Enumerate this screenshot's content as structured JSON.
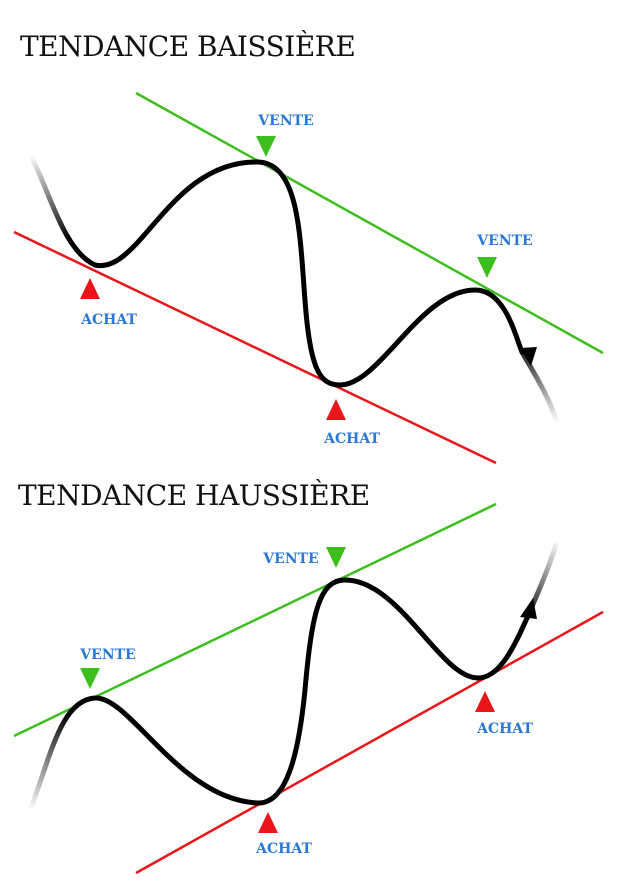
{
  "colors": {
    "resistance": "#3cbf1c",
    "support": "#e8161b",
    "sell_marker": "#3cbf1c",
    "buy_marker": "#e8161b",
    "label_text": "#2a79d6",
    "curve": "#000000"
  },
  "panels": [
    {
      "title": "TENDANCE BAISSIÈRE",
      "signals": [
        {
          "type": "buy",
          "label": "ACHAT"
        },
        {
          "type": "sell",
          "label": "VENTE"
        },
        {
          "type": "buy",
          "label": "ACHAT"
        },
        {
          "type": "sell",
          "label": "VENTE"
        }
      ]
    },
    {
      "title": "TENDANCE HAUSSIÈRE",
      "signals": [
        {
          "type": "sell",
          "label": "VENTE"
        },
        {
          "type": "buy",
          "label": "ACHAT"
        },
        {
          "type": "sell",
          "label": "VENTE"
        },
        {
          "type": "buy",
          "label": "ACHAT"
        }
      ]
    }
  ]
}
